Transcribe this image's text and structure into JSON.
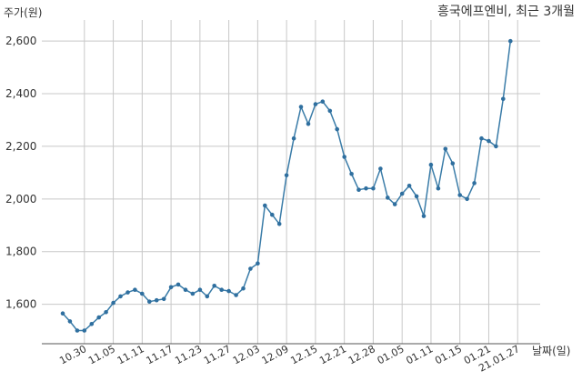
{
  "chart_data": {
    "type": "line",
    "title": "흥국에프엔비, 최근 3개월",
    "ylabel": "주가(원)",
    "xlabel": "날짜(일)",
    "ylim": [
      1450,
      2680
    ],
    "yticks": [
      1600,
      1800,
      2000,
      2200,
      2400,
      2600
    ],
    "ytick_labels": [
      "1,600",
      "1,800",
      "2,000",
      "2,200",
      "2,400",
      "2,600"
    ],
    "xtick_labels": [
      "10.30",
      "11.05",
      "11.11",
      "11.17",
      "11.23",
      "11.27",
      "12.03",
      "12.09",
      "12.15",
      "12.21",
      "12.28",
      "01.05",
      "01.11",
      "01.15",
      "01.21",
      "21.01.27"
    ],
    "xtick_index": [
      3,
      7,
      11,
      15,
      19,
      23,
      27,
      31,
      35,
      39,
      43,
      47,
      51,
      55,
      59,
      63
    ],
    "grid": true,
    "colors": {
      "line": "#3a7ca8",
      "marker": "#2f6f9f",
      "grid": "#c8c8c8"
    },
    "values": [
      1565,
      1535,
      1500,
      1500,
      1525,
      1550,
      1570,
      1605,
      1630,
      1645,
      1655,
      1640,
      1610,
      1615,
      1620,
      1665,
      1675,
      1655,
      1640,
      1655,
      1630,
      1670,
      1655,
      1650,
      1635,
      1660,
      1735,
      1755,
      1975,
      1940,
      1905,
      2090,
      2230,
      2350,
      2285,
      2360,
      2370,
      2335,
      2265,
      2160,
      2095,
      2035,
      2040,
      2040,
      2115,
      2005,
      1980,
      2020,
      2050,
      2010,
      1935,
      2130,
      2040,
      2190,
      2135,
      2015,
      2000,
      2060,
      2230,
      2220,
      2200,
      2380,
      2600
    ]
  }
}
